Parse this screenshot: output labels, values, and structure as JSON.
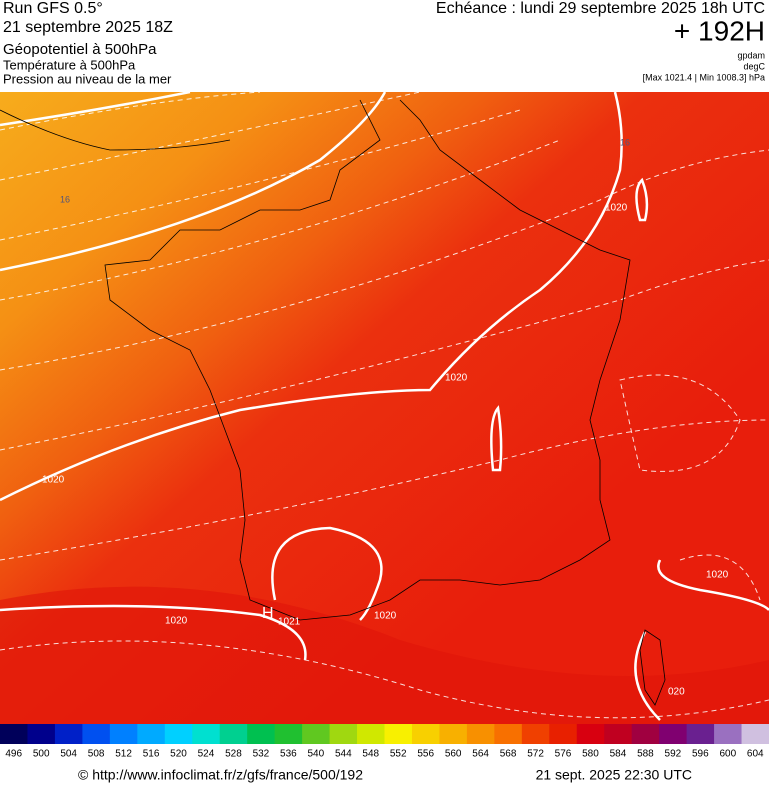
{
  "header": {
    "title": "Run GFS 0.5°",
    "run": "21 septembre 2025 18Z",
    "layers": [
      "Géopotentiel à 500hPa",
      "Température à 500hPa",
      "Pression au niveau de la mer"
    ],
    "echeance": "Echéance : lundi 29 septembre 2025 18h UTC",
    "lead": "+ 192H",
    "units": [
      "gpdam",
      "degC"
    ],
    "range": "[Max 1021.4 | Min 1008.3] hPa"
  },
  "map": {
    "isobar_labels": [
      "1020",
      "1020",
      "1020",
      "1020",
      "1020",
      "1020",
      "020"
    ],
    "high": "H",
    "high_value": "1021",
    "temp_labels": [
      "16",
      "16"
    ]
  },
  "colorbar": {
    "labels": [
      496,
      500,
      504,
      508,
      512,
      516,
      520,
      524,
      528,
      532,
      536,
      540,
      544,
      548,
      552,
      556,
      560,
      564,
      568,
      572,
      576,
      580,
      584,
      588,
      592,
      596,
      600,
      604
    ],
    "colors": [
      "#00005a",
      "#00008c",
      "#0020c8",
      "#0050f0",
      "#0080ff",
      "#00aaff",
      "#00d0ff",
      "#00e0d0",
      "#00d090",
      "#00c050",
      "#20c030",
      "#60c820",
      "#a0d810",
      "#d0e800",
      "#f8f000",
      "#f8d000",
      "#f8b000",
      "#f89000",
      "#f87000",
      "#f04000",
      "#e82000",
      "#d80010",
      "#c00020",
      "#a00040",
      "#800070",
      "#6a2090",
      "#9a70c0",
      "#d0c0e0"
    ]
  },
  "footer": {
    "url": "© http://www.infoclimat.fr/z/gfs/france/500/192",
    "date": "21 sept. 2025 22:30 UTC"
  }
}
